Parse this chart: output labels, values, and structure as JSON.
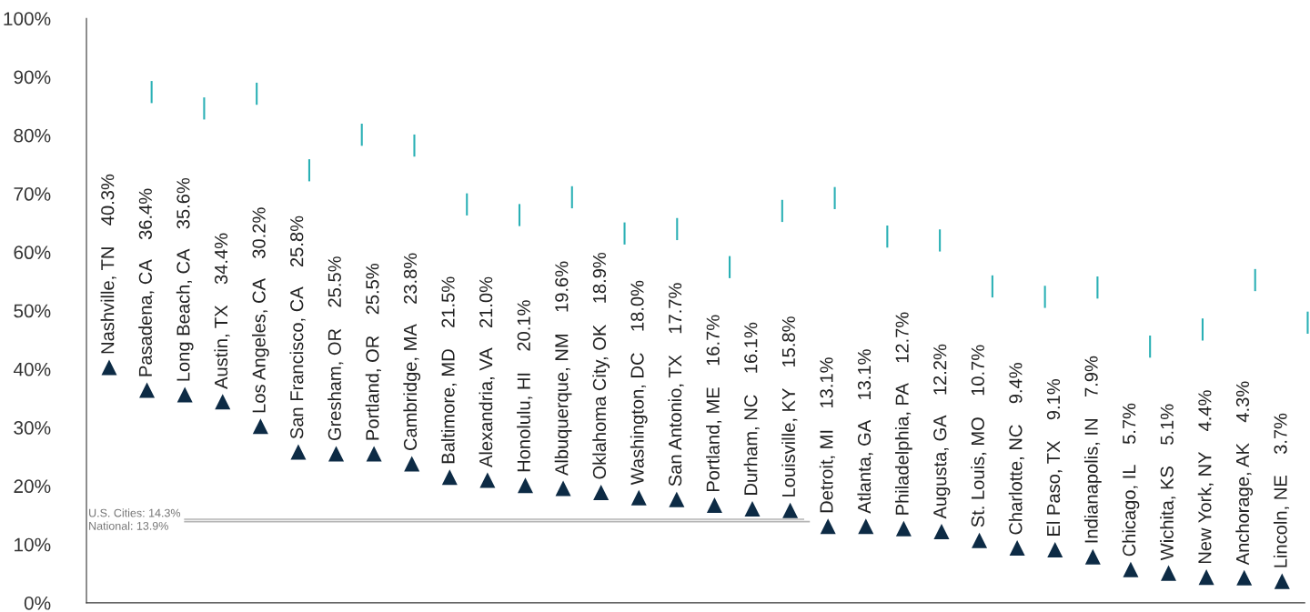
{
  "chart_data": {
    "type": "scatter",
    "categories": [
      "Nashville, TN",
      "Pasadena, CA",
      "Long Beach, CA",
      "Austin, TX",
      "Los Angeles, CA",
      "San Francisco, CA",
      "Gresham, OR",
      "Portland, OR",
      "Cambridge, MA",
      "Baltimore, MD",
      "Alexandria, VA",
      "Honolulu, HI",
      "Albuquerque, NM",
      "Oklahoma City, OK",
      "Washington, DC",
      "San Antonio, TX",
      "Portland, ME",
      "Durham, NC",
      "Louisville, KY",
      "Detroit, MI",
      "Atlanta, GA",
      "Philadelphia, PA",
      "Augusta, GA",
      "St. Louis, MO",
      "Charlotte, NC",
      "El Paso, TX",
      "Indianapolis, IN",
      "Chicago, IL",
      "Wichita, KS",
      "New York, NY",
      "Anchorage, AK",
      "Lincoln, NE"
    ],
    "values": [
      40.3,
      36.4,
      35.6,
      34.4,
      30.2,
      25.8,
      25.5,
      25.5,
      23.8,
      21.5,
      21.0,
      20.1,
      19.6,
      18.9,
      18.0,
      17.7,
      16.7,
      16.1,
      15.8,
      13.1,
      13.1,
      12.7,
      12.2,
      10.7,
      9.4,
      9.1,
      7.9,
      5.7,
      5.1,
      4.4,
      4.3,
      3.7
    ],
    "value_labels": [
      "40.3%",
      "36.4%",
      "35.6%",
      "34.4%",
      "30.2%",
      "25.8%",
      "25.5%",
      "25.5%",
      "23.8%",
      "21.5%",
      "21.0%",
      "20.1%",
      "19.6%",
      "18.9%",
      "18.0%",
      "17.7%",
      "16.7%",
      "16.1%",
      "15.8%",
      "13.1%",
      "13.1%",
      "12.7%",
      "12.2%",
      "10.7%",
      "9.4%",
      "9.1%",
      "7.9%",
      "5.7%",
      "5.1%",
      "4.4%",
      "4.3%",
      "3.7%"
    ],
    "color": "#0d2b45",
    "marker": "triangle",
    "ylim": [
      0,
      100
    ],
    "yticks": [
      {
        "value": 0,
        "label": "0%"
      },
      {
        "value": 10,
        "label": "10%"
      },
      {
        "value": 20,
        "label": "20%"
      },
      {
        "value": 30,
        "label": "30%"
      },
      {
        "value": 40,
        "label": "40%"
      },
      {
        "value": 50,
        "label": "50%"
      },
      {
        "value": 60,
        "label": "60%"
      },
      {
        "value": 70,
        "label": "70%"
      },
      {
        "value": 80,
        "label": "80%"
      },
      {
        "value": 90,
        "label": "90%"
      },
      {
        "value": 100,
        "label": "100%"
      }
    ],
    "ref_lines": [
      {
        "axis": "y",
        "value": 14.3,
        "label": "U.S. Cities: 14.3%",
        "color": "#b5b5b5"
      },
      {
        "axis": "y",
        "value": 13.9,
        "label": "National: 13.9%",
        "color": "#b5b5b5"
      }
    ],
    "grid": false,
    "legend": false
  }
}
